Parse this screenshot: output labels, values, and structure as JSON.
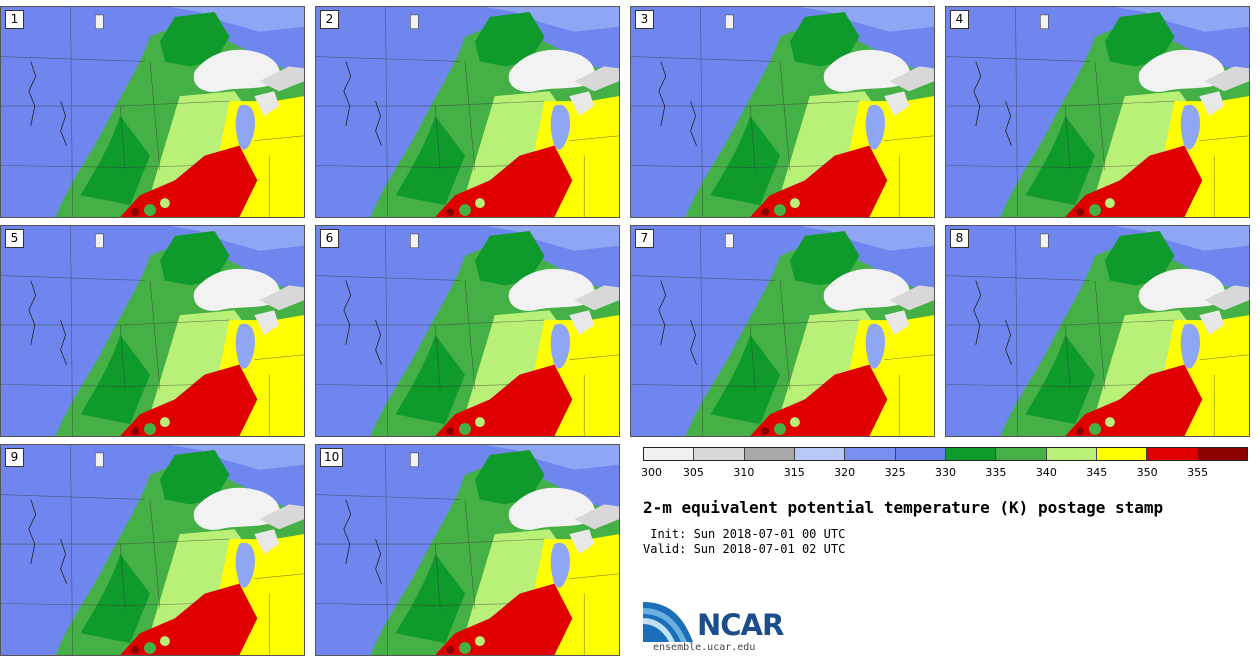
{
  "title": "2-m equivalent potential temperature (K) postage stamp",
  "init": " Init: Sun 2018-07-01 00 UTC",
  "valid": "Valid: Sun 2018-07-01 02 UTC",
  "site": "ensemble.ucar.edu",
  "logo_text": "NCAR",
  "members": [
    "1",
    "2",
    "3",
    "4",
    "5",
    "6",
    "7",
    "8",
    "9",
    "10"
  ],
  "colorbar": {
    "ticks": [
      "300",
      "305",
      "310",
      "315",
      "320",
      "325",
      "330",
      "335",
      "340",
      "345",
      "350",
      "355"
    ],
    "colors": [
      "#f0f0f0",
      "#d8d8d8",
      "#a8a8a8",
      "#b8c8f8",
      "#7890f0",
      "#6a80ec",
      "#0f9a2c",
      "#45b045",
      "#b8f078",
      "#ffff00",
      "#e00000",
      "#8b0000"
    ]
  }
}
